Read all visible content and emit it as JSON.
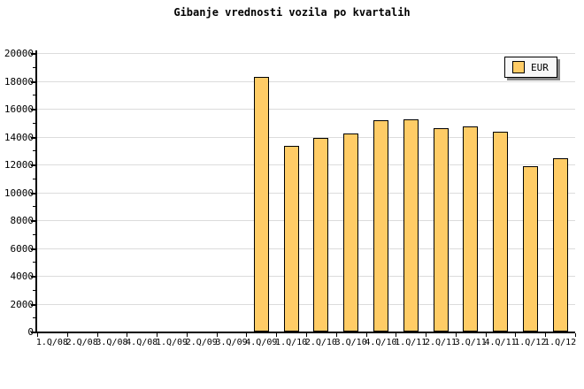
{
  "title": "Gibanje vrednosti vozila po kvartalih",
  "legend": {
    "label": "EUR"
  },
  "colors": {
    "bar_fill": "#FFCC66",
    "bar_border": "#000000",
    "gridline": "#DCDCDC",
    "axis": "#000000",
    "legend_bg": "#F8F8F8",
    "legend_shadow": "#888888",
    "text": "#000000"
  },
  "chart_data": {
    "type": "bar",
    "title": "Gibanje vrednosti vozila po kvartalih",
    "categories": [
      "1.Q/08",
      "2.Q/08",
      "3.Q/08",
      "4.Q/08",
      "1.Q/09",
      "2.Q/09",
      "3.Q/09",
      "4.Q/09",
      "1.Q/10",
      "2.Q/10",
      "3.Q/10",
      "4.Q/10",
      "1.Q/11",
      "2.Q/11",
      "3.Q/11",
      "4.Q/11",
      "1.Q/12",
      "1.Q/12"
    ],
    "series": [
      {
        "name": "EUR",
        "values": [
          null,
          null,
          null,
          null,
          null,
          null,
          null,
          18300,
          13350,
          13900,
          14200,
          15150,
          15250,
          14600,
          14750,
          14350,
          11900,
          12450
        ]
      }
    ],
    "xlabel": "",
    "ylabel": "",
    "ylim": [
      0,
      20000
    ],
    "ytick_step": 2000,
    "ytick_minor_step": 1000,
    "grid": "horizontal",
    "legend_position": "top-right"
  }
}
